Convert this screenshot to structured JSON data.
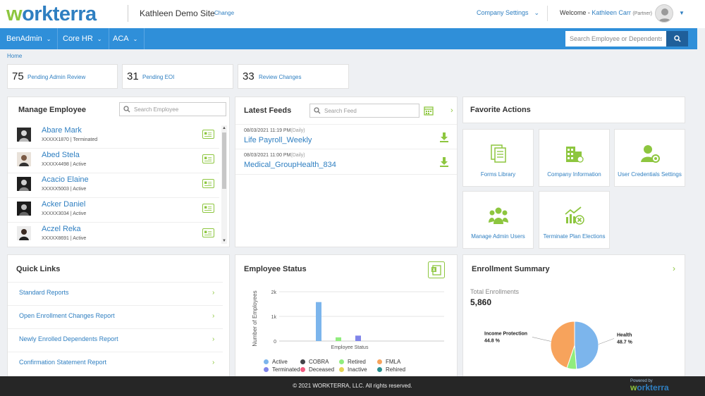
{
  "header": {
    "logo_first": "w",
    "logo_rest": "orkterra",
    "site_name": "Kathleen Demo Site",
    "change_label": "Change",
    "company_settings_label": "Company Settings",
    "welcome_prefix": "Welcome - ",
    "user_name": "Kathleen Carr",
    "user_role": "(Partner)"
  },
  "nav": {
    "items": [
      {
        "label": "BenAdmin"
      },
      {
        "label": "Core HR"
      },
      {
        "label": "ACA"
      }
    ],
    "search_placeholder": "Search Employee or Dependents"
  },
  "breadcrumb": "Home",
  "stats": [
    {
      "count": "75",
      "label": "Pending Admin Review"
    },
    {
      "count": "31",
      "label": "Pending EOI"
    },
    {
      "count": "33",
      "label": "Review Changes"
    }
  ],
  "manage_employee": {
    "title": "Manage Employee",
    "search_placeholder": "Search Employee",
    "employees": [
      {
        "name": "Abare Mark",
        "meta": "XXXXX1870 | Terminated"
      },
      {
        "name": "Abed Stela",
        "meta": "XXXXX4498 | Active"
      },
      {
        "name": "Acacio Elaine",
        "meta": "XXXXX5003 | Active"
      },
      {
        "name": "Acker Daniel",
        "meta": "XXXXX3034 | Active"
      },
      {
        "name": "Aczel Reka",
        "meta": "XXXXX8691 | Active"
      }
    ]
  },
  "latest_feeds": {
    "title": "Latest Feeds",
    "search_placeholder": "Search Feed",
    "feeds": [
      {
        "date": "08/03/2021 11:19 PM",
        "freq": "(Daily)",
        "name": "Life Payroll_Weekly"
      },
      {
        "date": "08/03/2021 11:00 PM",
        "freq": "(Daily)",
        "name": "Medical_GroupHealth_834"
      }
    ]
  },
  "favorite_actions": {
    "title": "Favorite Actions",
    "tiles": [
      {
        "label": "Forms Library",
        "icon": "forms-icon"
      },
      {
        "label": "Company Information",
        "icon": "building-icon"
      },
      {
        "label": "User Credentials Settings",
        "icon": "user-gear-icon"
      },
      {
        "label": "Manage Admin Users",
        "icon": "users-group-icon"
      },
      {
        "label": "Terminate Plan Elections",
        "icon": "chart-terminate-icon"
      }
    ]
  },
  "quick_links": {
    "title": "Quick Links",
    "links": [
      {
        "label": "Standard Reports"
      },
      {
        "label": "Open Enrollment Changes Report"
      },
      {
        "label": "Newly Enrolled Dependents Report"
      },
      {
        "label": "Confirmation Statement Report"
      }
    ]
  },
  "employee_status": {
    "title": "Employee Status",
    "legend": [
      {
        "name": "Active",
        "color": "#7cb5ec"
      },
      {
        "name": "COBRA",
        "color": "#434348"
      },
      {
        "name": "Retired",
        "color": "#90ed7d"
      },
      {
        "name": "FMLA",
        "color": "#f7a35c"
      },
      {
        "name": "Terminated",
        "color": "#8085e9"
      },
      {
        "name": "Deceased",
        "color": "#f15c80"
      },
      {
        "name": "Inactive",
        "color": "#e4d354"
      },
      {
        "name": "Rehired",
        "color": "#2b908f"
      }
    ]
  },
  "enrollment_summary": {
    "title": "Enrollment Summary",
    "total_label": "Total Enrollments",
    "total_value": "5,860"
  },
  "chart_data": [
    {
      "type": "bar",
      "title": "Employee Status",
      "xlabel": "Employee Status",
      "ylabel": "Number of Employees",
      "ylim": [
        0,
        2000
      ],
      "yticks": [
        "0",
        "1k",
        "2k"
      ],
      "series": [
        {
          "name": "Active",
          "color": "#7cb5ec",
          "value": 1580
        },
        {
          "name": "COBRA",
          "color": "#434348",
          "value": 0
        },
        {
          "name": "Retired",
          "color": "#90ed7d",
          "value": 150
        },
        {
          "name": "FMLA",
          "color": "#f7a35c",
          "value": 0
        },
        {
          "name": "Terminated",
          "color": "#8085e9",
          "value": 220
        },
        {
          "name": "Deceased",
          "color": "#f15c80",
          "value": 0
        },
        {
          "name": "Inactive",
          "color": "#e4d354",
          "value": 0
        },
        {
          "name": "Rehired",
          "color": "#2b908f",
          "value": 0
        }
      ],
      "legend": "bottom"
    },
    {
      "type": "pie",
      "title": "Enrollment Summary",
      "slices": [
        {
          "name": "Health",
          "value": 48.7,
          "label": "48.7 %",
          "color": "#7cb5ec"
        },
        {
          "name": "Retired",
          "value": 6.5,
          "color": "#90ed7d"
        },
        {
          "name": "Income Protection",
          "value": 44.8,
          "label": "44.8 %",
          "color": "#f7a35c"
        }
      ]
    }
  ],
  "footer": {
    "copyright": "© 2021 WORKTERRA, LLC. All rights reserved.",
    "powered_by": "Powered by",
    "logo_first": "w",
    "logo_rest": "orkterra"
  }
}
